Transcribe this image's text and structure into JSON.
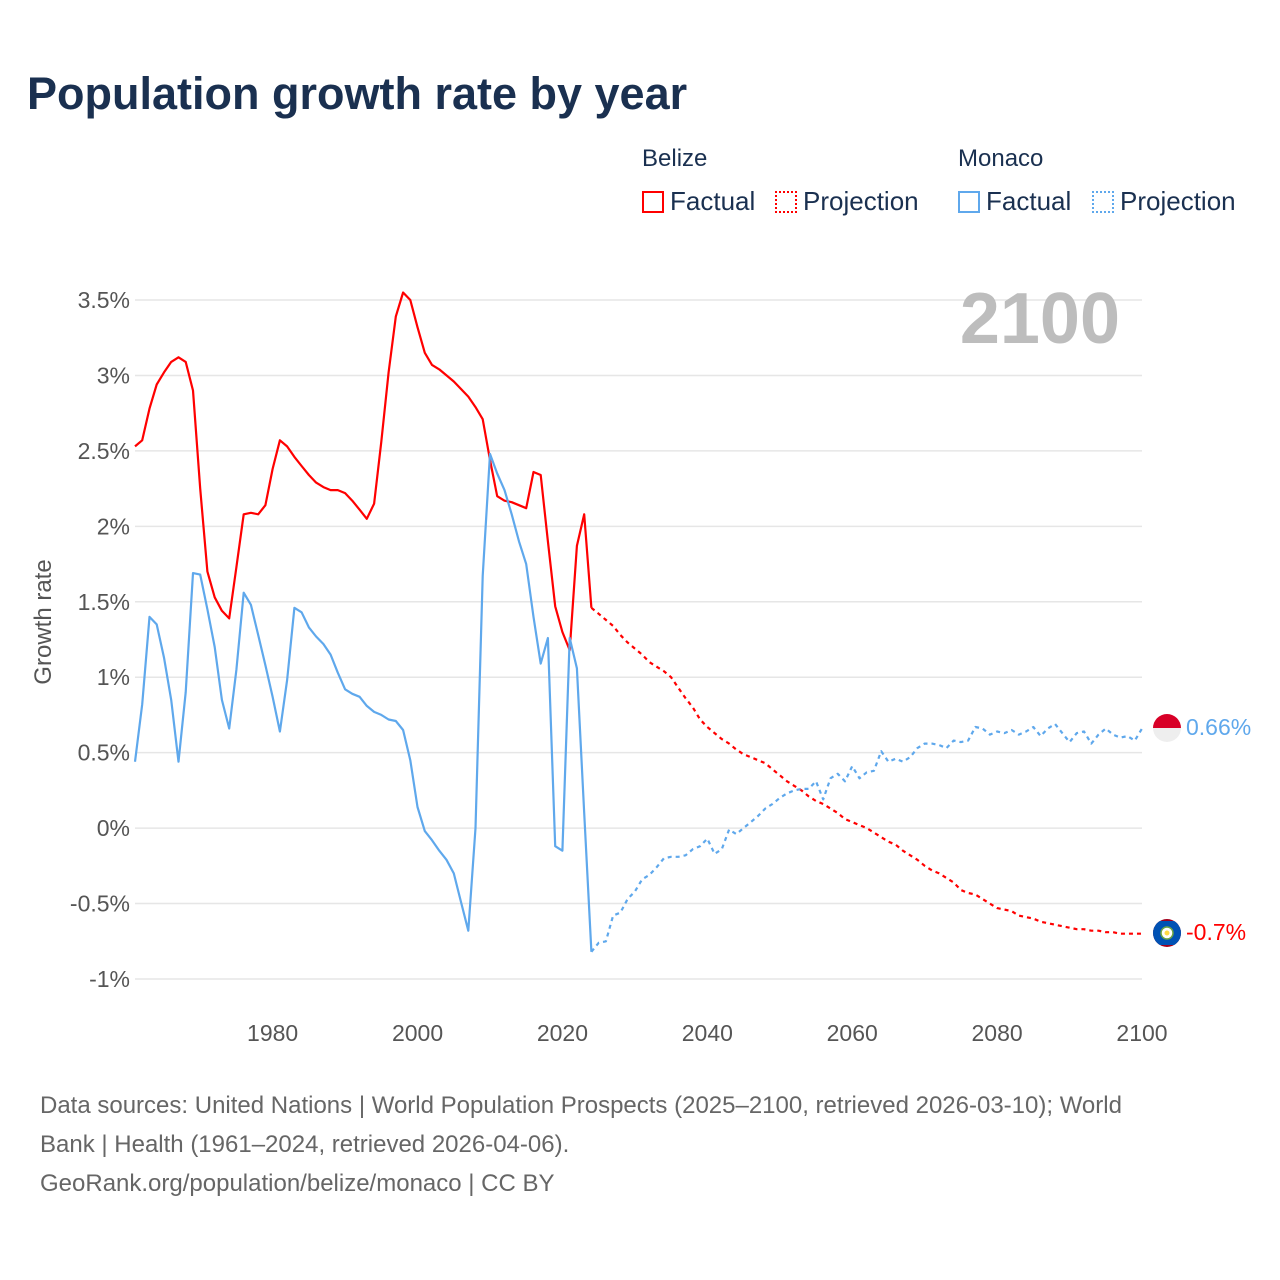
{
  "title": "Population growth rate by year",
  "legend": {
    "groups": [
      {
        "name": "Belize",
        "color": "#ff0000",
        "factual": "Factual",
        "projection": "Projection"
      },
      {
        "name": "Monaco",
        "color": "#5fa8ec",
        "factual": "Factual",
        "projection": "Projection"
      }
    ]
  },
  "year_watermark": "2100",
  "end_labels": {
    "monaco": "0.66%",
    "belize": "-0.7%"
  },
  "flags": {
    "monaco": "monaco-flag-icon",
    "belize": "belize-flag-icon"
  },
  "footer": {
    "line1": "Data sources: United Nations | World Population Prospects (2025–2100, retrieved 2026-03-10); World",
    "line2": "Bank | Health (1961–2024, retrieved 2026-04-06).",
    "line3": "GeoRank.org/population/belize/monaco | CC BY"
  },
  "chart_data": {
    "type": "line",
    "title": "Population growth rate by year",
    "xlabel": "",
    "ylabel": "Growth rate",
    "xlim": [
      1961,
      2100
    ],
    "ylim": [
      -1,
      3.5
    ],
    "xticks": [
      1980,
      2000,
      2020,
      2040,
      2060,
      2080,
      2100
    ],
    "yticks": [
      -1,
      -0.5,
      0,
      0.5,
      1,
      1.5,
      2,
      2.5,
      3,
      3.5
    ],
    "ytick_labels": [
      "-1%",
      "-0.5%",
      "0%",
      "0.5%",
      "1%",
      "1.5%",
      "2%",
      "2.5%",
      "3%",
      "3.5%"
    ],
    "grid": true,
    "legend_position": "top-right",
    "series": [
      {
        "name": "Belize Factual",
        "color": "#ff0000",
        "dashed": false,
        "x0": 1961,
        "values": [
          2.53,
          2.57,
          2.78,
          2.94,
          3.02,
          3.09,
          3.12,
          3.09,
          2.9,
          2.25,
          1.7,
          1.53,
          1.44,
          1.39,
          1.73,
          2.08,
          2.09,
          2.08,
          2.14,
          2.38,
          2.57,
          2.53,
          2.46,
          2.4,
          2.34,
          2.29,
          2.26,
          2.24,
          2.24,
          2.22,
          2.17,
          2.11,
          2.05,
          2.15,
          2.56,
          3.02,
          3.39,
          3.55,
          3.5,
          3.32,
          3.15,
          3.07,
          3.04,
          3.0,
          2.96,
          2.91,
          2.86,
          2.79,
          2.71,
          2.44,
          2.2,
          2.17,
          2.16,
          2.14,
          2.12,
          2.36,
          2.34,
          1.9,
          1.47,
          1.3,
          1.18,
          1.87,
          2.08,
          1.46
        ]
      },
      {
        "name": "Belize Projection",
        "color": "#ff0000",
        "dashed": true,
        "x0": 2024,
        "values": [
          1.46,
          1.42,
          1.38,
          1.34,
          1.28,
          1.23,
          1.19,
          1.15,
          1.1,
          1.07,
          1.04,
          1.0,
          0.93,
          0.86,
          0.8,
          0.72,
          0.67,
          0.63,
          0.59,
          0.56,
          0.52,
          0.49,
          0.47,
          0.45,
          0.43,
          0.39,
          0.35,
          0.31,
          0.28,
          0.25,
          0.21,
          0.18,
          0.16,
          0.13,
          0.1,
          0.06,
          0.04,
          0.02,
          0.0,
          -0.03,
          -0.06,
          -0.09,
          -0.11,
          -0.15,
          -0.18,
          -0.21,
          -0.25,
          -0.28,
          -0.3,
          -0.33,
          -0.36,
          -0.41,
          -0.43,
          -0.44,
          -0.47,
          -0.5,
          -0.53,
          -0.54,
          -0.55,
          -0.58,
          -0.59,
          -0.6,
          -0.62,
          -0.63,
          -0.64,
          -0.65,
          -0.66,
          -0.67,
          -0.67,
          -0.68,
          -0.68,
          -0.69,
          -0.69,
          -0.7,
          -0.7,
          -0.7,
          -0.7
        ]
      },
      {
        "name": "Monaco Factual",
        "color": "#5fa8ec",
        "dashed": false,
        "x0": 1961,
        "values": [
          0.44,
          0.82,
          1.4,
          1.35,
          1.13,
          0.85,
          0.44,
          0.9,
          1.69,
          1.68,
          1.45,
          1.2,
          0.85,
          0.66,
          1.05,
          1.56,
          1.48,
          1.28,
          1.08,
          0.87,
          0.64,
          0.98,
          1.46,
          1.43,
          1.33,
          1.27,
          1.22,
          1.15,
          1.03,
          0.92,
          0.89,
          0.87,
          0.81,
          0.77,
          0.75,
          0.72,
          0.71,
          0.65,
          0.45,
          0.14,
          -0.02,
          -0.08,
          -0.15,
          -0.21,
          -0.3,
          -0.49,
          -0.68,
          0.0,
          1.67,
          2.48,
          2.35,
          2.24,
          2.08,
          1.9,
          1.75,
          1.4,
          1.09,
          1.26,
          -0.12,
          -0.15,
          1.26,
          1.06,
          0.1,
          -0.82
        ]
      },
      {
        "name": "Monaco Projection",
        "color": "#5fa8ec",
        "dashed": true,
        "x0": 2024,
        "values": [
          -0.82,
          -0.76,
          -0.75,
          -0.58,
          -0.56,
          -0.47,
          -0.42,
          -0.34,
          -0.31,
          -0.26,
          -0.2,
          -0.19,
          -0.19,
          -0.18,
          -0.14,
          -0.12,
          -0.07,
          -0.17,
          -0.14,
          -0.01,
          -0.04,
          0.0,
          0.04,
          0.08,
          0.13,
          0.16,
          0.2,
          0.23,
          0.25,
          0.26,
          0.26,
          0.31,
          0.19,
          0.33,
          0.36,
          0.31,
          0.41,
          0.33,
          0.37,
          0.38,
          0.51,
          0.44,
          0.46,
          0.44,
          0.47,
          0.53,
          0.56,
          0.56,
          0.55,
          0.53,
          0.58,
          0.57,
          0.58,
          0.67,
          0.66,
          0.62,
          0.64,
          0.63,
          0.65,
          0.62,
          0.64,
          0.67,
          0.61,
          0.66,
          0.69,
          0.63,
          0.57,
          0.63,
          0.64,
          0.56,
          0.62,
          0.66,
          0.62,
          0.6,
          0.61,
          0.58,
          0.66
        ]
      }
    ]
  }
}
